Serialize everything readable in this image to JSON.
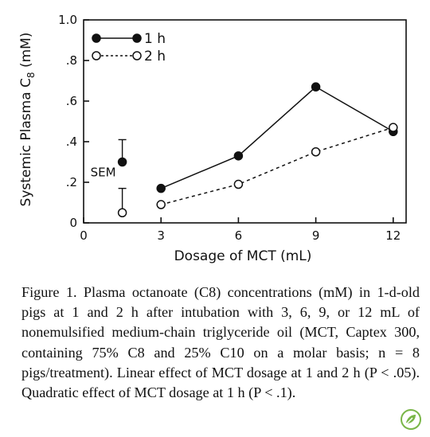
{
  "chart_data": {
    "type": "line",
    "x": [
      3,
      6,
      9,
      12
    ],
    "series": [
      {
        "name": "1 h",
        "values": [
          0.17,
          0.33,
          0.67,
          0.45
        ],
        "marker": "filled-circle",
        "line": "solid"
      },
      {
        "name": "2 h",
        "values": [
          0.09,
          0.19,
          0.35,
          0.47
        ],
        "marker": "open-circle",
        "line": "dashed"
      }
    ],
    "sem_bars": [
      {
        "series": "1 h",
        "x": 1.5,
        "center": 0.3,
        "upper": 0.41,
        "marker": "filled-circle"
      },
      {
        "series": "2 h",
        "x": 1.5,
        "center": 0.05,
        "lower": 0.17,
        "marker": "open-circle"
      }
    ],
    "sem_label": "SEM",
    "xlabel": "Dosage of MCT (mL)",
    "ylabel_prefix": "Systemic Plasma C",
    "ylabel_sub": "8",
    "ylabel_suffix": " (mM)",
    "xlim": [
      0,
      12.5
    ],
    "ylim": [
      0,
      1.0
    ],
    "xticks": [
      {
        "value": 0,
        "label": "0"
      },
      {
        "value": 3,
        "label": "3"
      },
      {
        "value": 6,
        "label": "6"
      },
      {
        "value": 9,
        "label": "9"
      },
      {
        "value": 12,
        "label": "12"
      }
    ],
    "yticks": [
      {
        "value": 0,
        "label": "0"
      },
      {
        "value": 0.2,
        "label": ".2"
      },
      {
        "value": 0.4,
        "label": ".4"
      },
      {
        "value": 0.6,
        "label": ".6"
      },
      {
        "value": 0.8,
        "label": ".8"
      },
      {
        "value": 1.0,
        "label": "1.0"
      }
    ],
    "legend_position": "top-left",
    "grid": false
  },
  "caption": "Figure 1. Plasma octanoate (C8) concentrations (mM) in 1-d-old pigs at 1 and 2 h after intubation with 3, 6, 9, or 12 mL of nonemulsified medium-chain triglyceride oil (MCT, Captex 300, containing 75% C8 and 25% C10 on a molar basis; n = 8 pigs/treatment). Linear effect of MCT dosage at 1 and 2 h (P < .05). Quadratic effect of MCT dosage at 1 h (P < .1).",
  "badge_icon": "leaf-badge-icon",
  "colors": {
    "ink": "#111111",
    "badge": "#7ab648"
  }
}
